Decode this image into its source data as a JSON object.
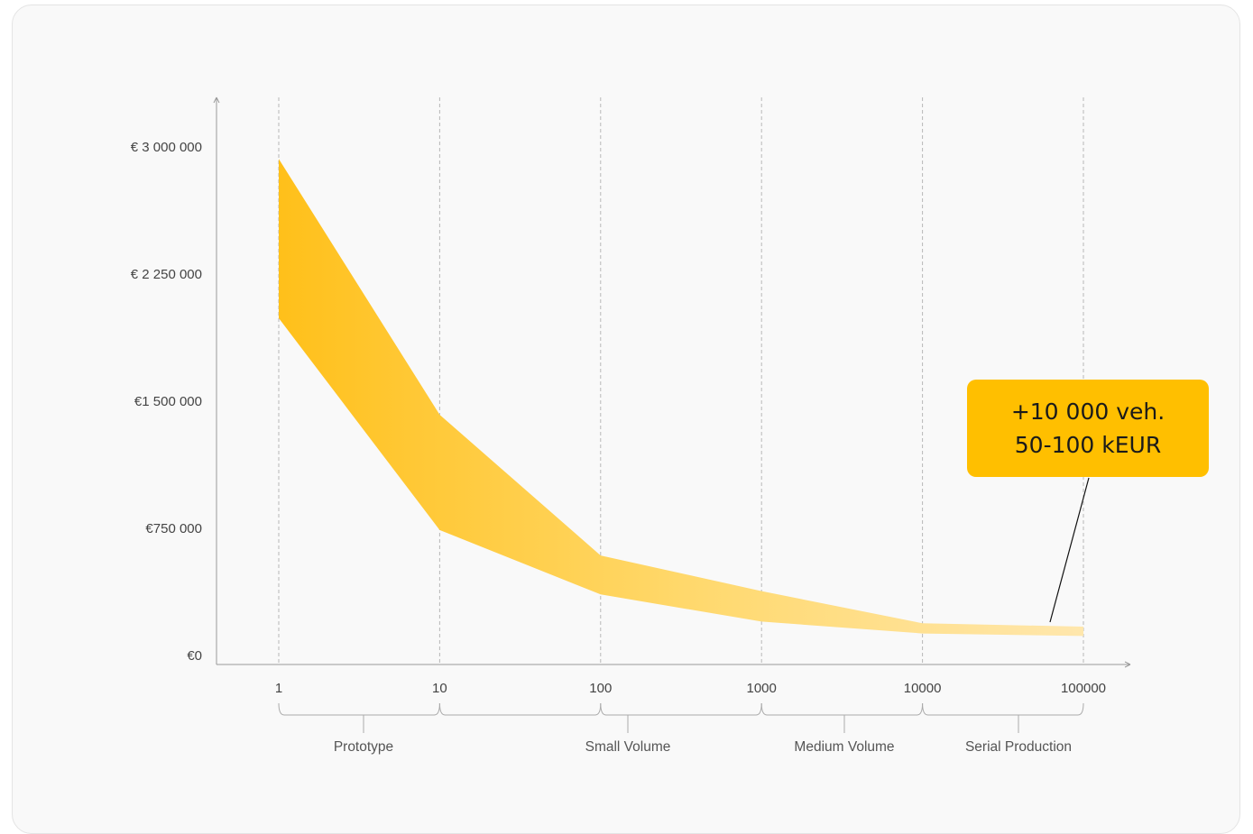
{
  "chart_data": {
    "type": "area",
    "x": [
      1,
      10,
      100,
      1000,
      10000,
      100000
    ],
    "x_scale": "log",
    "x_tick_labels": [
      "1",
      "10",
      "100",
      "1000",
      "10000",
      "100000"
    ],
    "y_tick_labels": [
      "€0",
      "€750 000",
      "€1 500 000",
      "€ 2 250 000",
      "€ 3 000 000"
    ],
    "y_ticks": [
      0,
      750000,
      1500000,
      2250000,
      3000000
    ],
    "ylim": [
      0,
      3300000
    ],
    "series": [
      {
        "values": [
          2930000,
          1420000,
          590000,
          380000,
          190000,
          170000
        ]
      },
      {
        "values": [
          1990000,
          740000,
          360000,
          200000,
          130000,
          115000
        ]
      }
    ],
    "fill_gradient": [
      "#ffc01a",
      "#ffe7ad"
    ],
    "phases": [
      "Prototype",
      "Small Volume",
      "Medium Volume",
      "Serial Production"
    ],
    "callout": {
      "line1": "+10 000 veh.",
      "line2": "50-100 kEUR",
      "color": "#ffbf00"
    },
    "title": "",
    "xlabel": "",
    "ylabel": "",
    "grid": "vertical dashed"
  }
}
